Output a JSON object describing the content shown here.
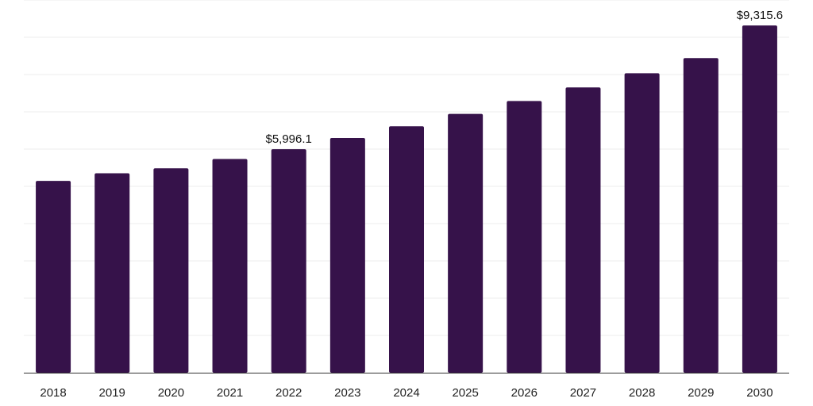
{
  "chart_data": {
    "type": "bar",
    "title": "",
    "xlabel": "",
    "ylabel": "",
    "categories": [
      "2018",
      "2019",
      "2020",
      "2021",
      "2022",
      "2023",
      "2024",
      "2025",
      "2026",
      "2027",
      "2028",
      "2029",
      "2030"
    ],
    "values": [
      5146.7,
      5351.4,
      5483.3,
      5734.8,
      5996.1,
      6297.2,
      6612.2,
      6943.1,
      7289.4,
      7654.6,
      8035.3,
      8440.6,
      9315.6
    ],
    "data_labels": [
      {
        "category": "2022",
        "text": "$5,996.1"
      },
      {
        "category": "2030",
        "text": "$9,315.6"
      }
    ],
    "ylim": [
      0,
      10000
    ],
    "grid": true,
    "legend": "none",
    "colors": {
      "bar": "#36124a",
      "grid": "#ececec",
      "axis": "#333333"
    }
  }
}
